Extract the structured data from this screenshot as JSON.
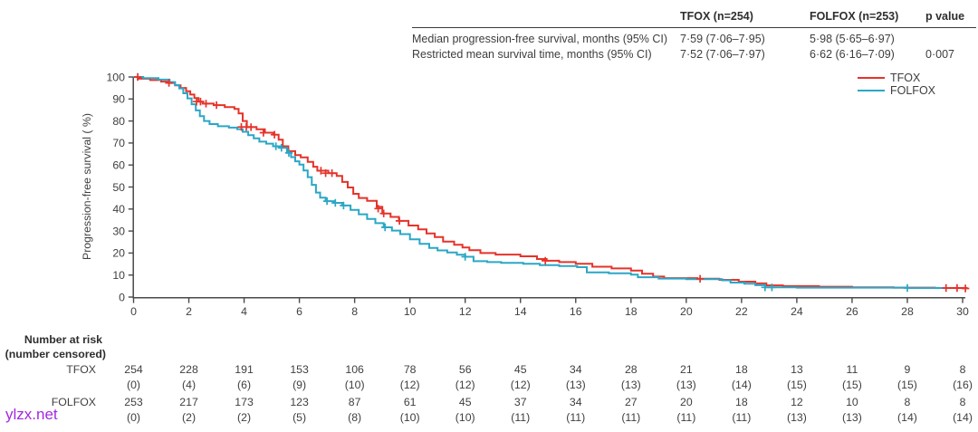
{
  "stats_table": {
    "col_headers": [
      "TFOX (n=254)",
      "FOLFOX (n=253)",
      "p value"
    ],
    "rows": [
      {
        "label": "Median progression-free survival, months (95% CI)",
        "tfox": "7·59 (7·06–7·95)",
        "folfox": "5·98 (5·65–6·97)",
        "p": ""
      },
      {
        "label": "Restricted mean survival time, months (95% CI)",
        "tfox": "7·52 (7·06–7·97)",
        "folfox": "6·62 (6·16–7·09)",
        "p": "0·007"
      }
    ]
  },
  "legend": {
    "items": [
      {
        "label": "TFOX",
        "color": "#e5332a"
      },
      {
        "label": "FOLFOX",
        "color": "#2aa7c6"
      }
    ]
  },
  "chart_data": {
    "type": "line",
    "subtype": "kaplan-meier-step",
    "title": "",
    "xlabel": "",
    "ylabel": "Progression-free survival ( %)",
    "xlim": [
      0,
      30
    ],
    "ylim": [
      0,
      100
    ],
    "xticks": [
      0,
      2,
      4,
      6,
      8,
      10,
      12,
      14,
      16,
      18,
      20,
      22,
      24,
      26,
      28,
      30
    ],
    "yticks": [
      0,
      10,
      20,
      30,
      40,
      50,
      60,
      70,
      80,
      90,
      100
    ],
    "grid": false,
    "legend_position": "top-right",
    "series": [
      {
        "name": "TFOX",
        "color": "#e5332a",
        "points": [
          [
            0,
            100
          ],
          [
            0.15,
            99.2
          ],
          [
            0.6,
            98.6
          ],
          [
            1.0,
            97.9
          ],
          [
            1.3,
            97.3
          ],
          [
            1.5,
            96.2
          ],
          [
            1.7,
            95.0
          ],
          [
            1.9,
            93.5
          ],
          [
            2.05,
            92.0
          ],
          [
            2.2,
            90.4
          ],
          [
            2.35,
            88.8
          ],
          [
            2.5,
            87.9
          ],
          [
            2.9,
            87.2
          ],
          [
            3.3,
            86.3
          ],
          [
            3.65,
            85.5
          ],
          [
            3.8,
            83.4
          ],
          [
            3.95,
            80.0
          ],
          [
            4.1,
            77.3
          ],
          [
            4.45,
            76.2
          ],
          [
            4.75,
            74.7
          ],
          [
            5.05,
            73.8
          ],
          [
            5.25,
            71.5
          ],
          [
            5.4,
            68.5
          ],
          [
            5.6,
            66.3
          ],
          [
            5.85,
            64.5
          ],
          [
            6.05,
            63.5
          ],
          [
            6.3,
            61.4
          ],
          [
            6.5,
            59.2
          ],
          [
            6.65,
            57.4
          ],
          [
            7.05,
            56.3
          ],
          [
            7.35,
            55.0
          ],
          [
            7.55,
            52.3
          ],
          [
            7.75,
            49.8
          ],
          [
            7.95,
            46.9
          ],
          [
            8.15,
            45.0
          ],
          [
            8.45,
            43.7
          ],
          [
            8.8,
            41.0
          ],
          [
            9.0,
            38.0
          ],
          [
            9.3,
            36.4
          ],
          [
            9.6,
            34.6
          ],
          [
            9.95,
            32.5
          ],
          [
            10.3,
            30.8
          ],
          [
            10.6,
            28.9
          ],
          [
            10.9,
            27.3
          ],
          [
            11.2,
            25.2
          ],
          [
            11.6,
            23.8
          ],
          [
            11.9,
            22.5
          ],
          [
            12.15,
            21.3
          ],
          [
            12.55,
            20.0
          ],
          [
            13.1,
            19.3
          ],
          [
            14.0,
            18.5
          ],
          [
            14.6,
            17.3
          ],
          [
            14.95,
            16.5
          ],
          [
            15.4,
            15.9
          ],
          [
            16.0,
            15.1
          ],
          [
            16.6,
            13.8
          ],
          [
            17.3,
            13.0
          ],
          [
            18.0,
            12.0
          ],
          [
            18.4,
            10.6
          ],
          [
            18.8,
            9.3
          ],
          [
            19.2,
            8.6
          ],
          [
            20.4,
            8.3
          ],
          [
            21.2,
            7.8
          ],
          [
            21.9,
            7.0
          ],
          [
            22.5,
            6.2
          ],
          [
            22.9,
            5.3
          ],
          [
            23.5,
            5.0
          ],
          [
            24.8,
            4.7
          ],
          [
            26.0,
            4.4
          ],
          [
            27.5,
            4.3
          ],
          [
            29.0,
            4.1
          ],
          [
            30.15,
            3.9
          ]
        ],
        "censor_marks": [
          [
            0.15,
            100
          ],
          [
            1.28,
            97.3
          ],
          [
            2.28,
            88.8
          ],
          [
            2.42,
            88.8
          ],
          [
            2.62,
            87.9
          ],
          [
            3.0,
            87.2
          ],
          [
            3.9,
            77.3
          ],
          [
            4.08,
            77.3
          ],
          [
            4.25,
            77.2
          ],
          [
            4.7,
            74.7
          ],
          [
            5.1,
            73.8
          ],
          [
            6.78,
            57.4
          ],
          [
            6.95,
            56.3
          ],
          [
            7.18,
            56.3
          ],
          [
            8.85,
            40.2
          ],
          [
            9.05,
            38.0
          ],
          [
            9.62,
            34.6
          ],
          [
            14.9,
            16.5
          ],
          [
            20.5,
            8.3
          ],
          [
            29.4,
            4.1
          ],
          [
            29.8,
            4.1
          ],
          [
            30.1,
            3.9
          ]
        ]
      },
      {
        "name": "FOLFOX",
        "color": "#2aa7c6",
        "points": [
          [
            0,
            100
          ],
          [
            0.35,
            99.5
          ],
          [
            0.9,
            98.8
          ],
          [
            1.3,
            97.7
          ],
          [
            1.5,
            96.3
          ],
          [
            1.65,
            94.8
          ],
          [
            1.8,
            92.6
          ],
          [
            1.95,
            90.3
          ],
          [
            2.1,
            87.6
          ],
          [
            2.25,
            84.8
          ],
          [
            2.4,
            82.2
          ],
          [
            2.55,
            80.0
          ],
          [
            2.75,
            78.6
          ],
          [
            3.05,
            77.6
          ],
          [
            3.45,
            77.0
          ],
          [
            3.75,
            76.3
          ],
          [
            3.95,
            75.1
          ],
          [
            4.15,
            73.6
          ],
          [
            4.35,
            72.1
          ],
          [
            4.55,
            70.6
          ],
          [
            4.8,
            69.7
          ],
          [
            5.05,
            68.5
          ],
          [
            5.3,
            67.8
          ],
          [
            5.55,
            65.5
          ],
          [
            5.7,
            63.6
          ],
          [
            5.85,
            61.7
          ],
          [
            6.0,
            60.2
          ],
          [
            6.15,
            57.5
          ],
          [
            6.3,
            54.5
          ],
          [
            6.45,
            51.0
          ],
          [
            6.6,
            47.5
          ],
          [
            6.75,
            45.2
          ],
          [
            6.95,
            43.6
          ],
          [
            7.25,
            42.8
          ],
          [
            7.55,
            41.6
          ],
          [
            7.85,
            39.6
          ],
          [
            8.15,
            37.6
          ],
          [
            8.45,
            35.5
          ],
          [
            8.75,
            33.6
          ],
          [
            9.05,
            31.7
          ],
          [
            9.35,
            30.2
          ],
          [
            9.65,
            28.6
          ],
          [
            10.0,
            26.2
          ],
          [
            10.35,
            24.2
          ],
          [
            10.7,
            22.3
          ],
          [
            11.0,
            21.2
          ],
          [
            11.35,
            20.3
          ],
          [
            11.7,
            19.2
          ],
          [
            12.0,
            18.3
          ],
          [
            12.3,
            16.3
          ],
          [
            12.8,
            15.9
          ],
          [
            13.3,
            15.5
          ],
          [
            14.1,
            15.1
          ],
          [
            14.7,
            14.5
          ],
          [
            15.4,
            14.1
          ],
          [
            16.05,
            13.6
          ],
          [
            16.4,
            11.2
          ],
          [
            17.2,
            10.8
          ],
          [
            18.0,
            10.2
          ],
          [
            18.25,
            9.0
          ],
          [
            19.0,
            8.4
          ],
          [
            20.0,
            8.1
          ],
          [
            21.3,
            7.6
          ],
          [
            21.6,
            6.6
          ],
          [
            22.1,
            6.1
          ],
          [
            22.5,
            5.4
          ],
          [
            22.85,
            4.4
          ],
          [
            24.0,
            4.3
          ],
          [
            28.0,
            4.1
          ],
          [
            29.5,
            4.0
          ]
        ],
        "censor_marks": [
          [
            5.15,
            68.5
          ],
          [
            5.35,
            67.8
          ],
          [
            5.62,
            65.5
          ],
          [
            7.0,
            43.6
          ],
          [
            7.3,
            42.8
          ],
          [
            7.6,
            41.6
          ],
          [
            9.1,
            31.7
          ],
          [
            12.0,
            18.3
          ],
          [
            22.85,
            4.4
          ],
          [
            23.1,
            4.4
          ],
          [
            28.0,
            4.1
          ]
        ]
      }
    ]
  },
  "risk_table": {
    "title": "Number at risk",
    "subtitle": "(number censored)",
    "columns_at_months": [
      0,
      2,
      4,
      6,
      8,
      10,
      12,
      14,
      16,
      18,
      20,
      22,
      24,
      26,
      28,
      30
    ],
    "groups": [
      {
        "label": "TFOX",
        "at_risk": [
          254,
          228,
          191,
          153,
          106,
          78,
          56,
          45,
          34,
          28,
          21,
          18,
          13,
          11,
          9,
          8
        ],
        "censored": [
          0,
          4,
          6,
          9,
          10,
          12,
          12,
          12,
          13,
          13,
          13,
          14,
          15,
          15,
          15,
          16
        ]
      },
      {
        "label": "FOLFOX",
        "at_risk": [
          253,
          217,
          173,
          123,
          87,
          61,
          45,
          37,
          34,
          27,
          20,
          18,
          12,
          10,
          8,
          8
        ],
        "censored": [
          0,
          2,
          2,
          5,
          8,
          10,
          10,
          11,
          11,
          11,
          11,
          11,
          13,
          13,
          14,
          14
        ]
      }
    ]
  },
  "watermark": "ylzx.net",
  "colors": {
    "tfox": "#e5332a",
    "folfox": "#2aa7c6",
    "axis": "#4a4a4a",
    "text": "#3f3f3f",
    "watermark": "#a428e0"
  }
}
